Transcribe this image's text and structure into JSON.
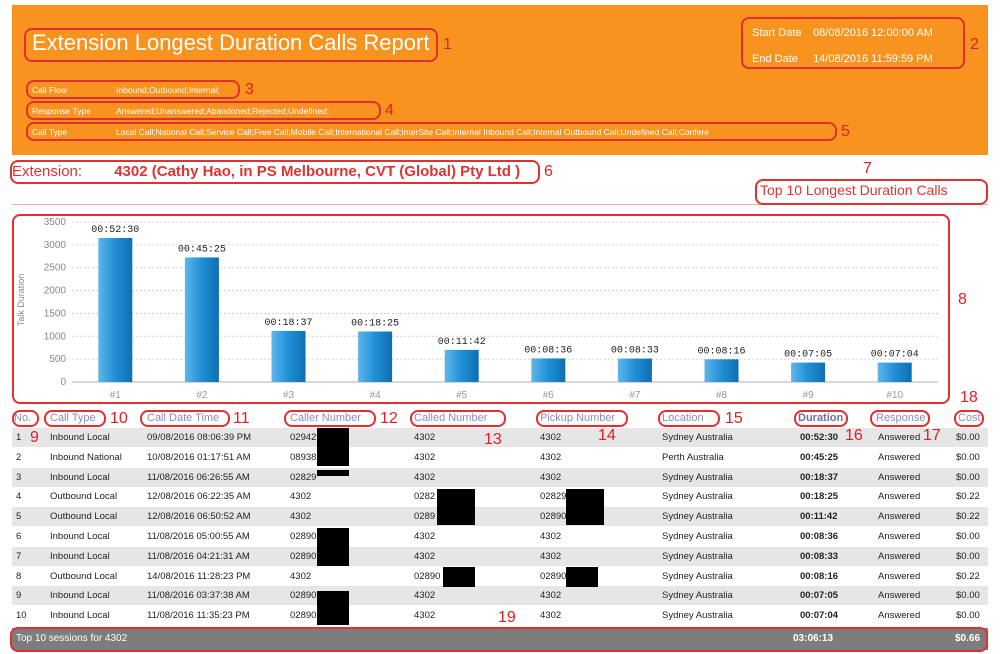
{
  "header": {
    "title": "Extension Longest Duration Calls Report",
    "start_date_label": "Start Date",
    "start_date_value": "08/08/2016 12:00:00 AM",
    "end_date_label": "End Date",
    "end_date_value": "14/08/2016 11:59:59 PM",
    "filters": [
      {
        "label": "Call Flow",
        "value": "Inbound;Outbound;Internal;"
      },
      {
        "label": "Response Type",
        "value": "Answered;Unanswered;Abandoned;Rejected;Undefined;"
      },
      {
        "label": "Call Type",
        "value": "Local Call;National Call;Service Call;Free Call;Mobile Call;International Call;InterSite Call;Internal Inbound Call;Internal Outbound Call;Undefined Call;Confere"
      }
    ]
  },
  "extension": {
    "label": "Extension:",
    "value": "4302 (Cathy Hao,  in PS Melbourne,  CVT (Global) Pty Ltd )"
  },
  "top10_title": "Top 10 Longest Duration Calls",
  "annotations": [
    "1",
    "2",
    "3",
    "4",
    "5",
    "6",
    "7",
    "8",
    "9",
    "10",
    "11",
    "12",
    "13",
    "14",
    "15",
    "16",
    "17",
    "18",
    "19"
  ],
  "chart_data": {
    "type": "bar",
    "categories": [
      "#1",
      "#2",
      "#3",
      "#4",
      "#5",
      "#6",
      "#7",
      "#8",
      "#9",
      "#10"
    ],
    "values": [
      3150,
      2725,
      1117,
      1105,
      702,
      516,
      513,
      496,
      425,
      424
    ],
    "data_labels": [
      "00:52:30",
      "00:45:25",
      "00:18:37",
      "00:18:25",
      "00:11:42",
      "00:08:36",
      "00:08:33",
      "00:08:16",
      "00:07:05",
      "00:07:04"
    ],
    "ylabel": "Talk Duration",
    "yticks": [
      0,
      500,
      1000,
      1500,
      2000,
      2500,
      3000,
      3500
    ],
    "ylim": [
      0,
      3500
    ],
    "grid": true,
    "color": "#1f8fd6"
  },
  "table": {
    "columns": [
      "No.",
      "Call Type",
      "Call Date Time",
      "Caller Number",
      "Called Number",
      "Pickup Number",
      "Location",
      "Duration",
      "Response",
      "Cost"
    ],
    "rows": [
      {
        "no": "1",
        "type": "Inbound Local",
        "datetime": "09/08/2016 08:06:39 PM",
        "caller": "02942",
        "called": "4302",
        "pickup": "4302",
        "location": "Sydney Australia",
        "duration": "00:52:30",
        "response": "Answered",
        "cost": "$0.00"
      },
      {
        "no": "2",
        "type": "Inbound National",
        "datetime": "10/08/2016 01:17:51 AM",
        "caller": "08938",
        "called": "4302",
        "pickup": "4302",
        "location": "Perth Australia",
        "duration": "00:45:25",
        "response": "Answered",
        "cost": "$0.00"
      },
      {
        "no": "3",
        "type": "Inbound Local",
        "datetime": "11/08/2016 06:26:55 AM",
        "caller": "02829",
        "called": "4302",
        "pickup": "4302",
        "location": "Sydney Australia",
        "duration": "00:18:37",
        "response": "Answered",
        "cost": "$0.00"
      },
      {
        "no": "4",
        "type": "Outbound Local",
        "datetime": "12/08/2016 06:22:35 AM",
        "caller": "4302",
        "called": "0282",
        "pickup": "02829",
        "location": "Sydney Australia",
        "duration": "00:18:25",
        "response": "Answered",
        "cost": "$0.22"
      },
      {
        "no": "5",
        "type": "Outbound Local",
        "datetime": "12/08/2016 06:50:52 AM",
        "caller": "4302",
        "called": "0289",
        "pickup": "02890",
        "location": "Sydney Australia",
        "duration": "00:11:42",
        "response": "Answered",
        "cost": "$0.22"
      },
      {
        "no": "6",
        "type": "Inbound Local",
        "datetime": "11/08/2016 05:00:55 AM",
        "caller": "02890",
        "called": "4302",
        "pickup": "4302",
        "location": "Sydney Australia",
        "duration": "00:08:36",
        "response": "Answered",
        "cost": "$0.00"
      },
      {
        "no": "7",
        "type": "Inbound Local",
        "datetime": "11/08/2016 04:21:31 AM",
        "caller": "02890",
        "called": "4302",
        "pickup": "4302",
        "location": "Sydney Australia",
        "duration": "00:08:33",
        "response": "Answered",
        "cost": "$0.00"
      },
      {
        "no": "8",
        "type": "Outbound Local",
        "datetime": "14/08/2016 11:28:23 PM",
        "caller": "4302",
        "called": "02890",
        "pickup": "02890",
        "location": "Sydney Australia",
        "duration": "00:08:16",
        "response": "Answered",
        "cost": "$0.22"
      },
      {
        "no": "9",
        "type": "Inbound Local",
        "datetime": "11/08/2016 03:37:38 AM",
        "caller": "02890",
        "called": "4302",
        "pickup": "4302",
        "location": "Sydney Australia",
        "duration": "00:07:05",
        "response": "Answered",
        "cost": "$0.00"
      },
      {
        "no": "10",
        "type": "Inbound Local",
        "datetime": "11/08/2016 11:35:23 PM",
        "caller": "02890",
        "called": "4302",
        "pickup": "4302",
        "location": "Sydney Australia",
        "duration": "00:07:04",
        "response": "Answered",
        "cost": "$0.00"
      }
    ]
  },
  "footer": {
    "label": "Top 10 sessions for 4302",
    "total_duration": "03:06:13",
    "total_cost": "$0.66"
  },
  "colors": {
    "header_bg": "#f7931e",
    "annotation": "#e03030",
    "bar": "#1f8fd6",
    "footer_bg": "#7d7d7d"
  }
}
